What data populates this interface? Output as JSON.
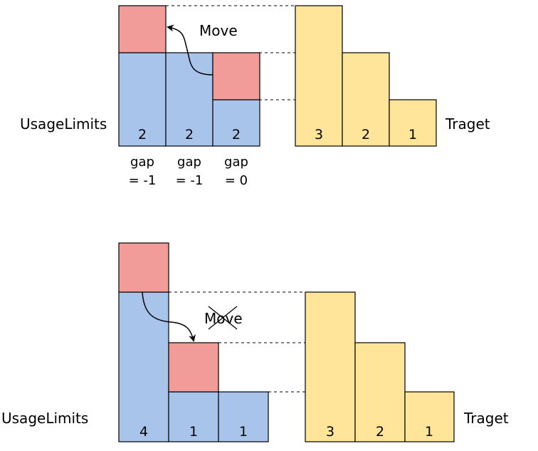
{
  "colors": {
    "blue_fill": "#A9C4EB",
    "red_fill": "#F19C99",
    "yellow_fill": "#FFE599",
    "stroke": "#000000"
  },
  "top": {
    "left_label": "UsageLimits",
    "right_label": "Traget",
    "arrow_label": "Move",
    "usage_values": [
      "2",
      "2",
      "2"
    ],
    "target_values": [
      "3",
      "2",
      "1"
    ],
    "gaps": [
      {
        "line1": "gap",
        "line2": "= -1"
      },
      {
        "line1": "gap",
        "line2": "= -1"
      },
      {
        "line1": "gap",
        "line2": "= 0"
      }
    ]
  },
  "bottom": {
    "left_label": "UsageLimits",
    "right_label": "Traget",
    "arrow_label": "Move",
    "arrow_label_crossed": true,
    "usage_values": [
      "4",
      "1",
      "1"
    ],
    "target_values": [
      "3",
      "2",
      "1"
    ]
  }
}
